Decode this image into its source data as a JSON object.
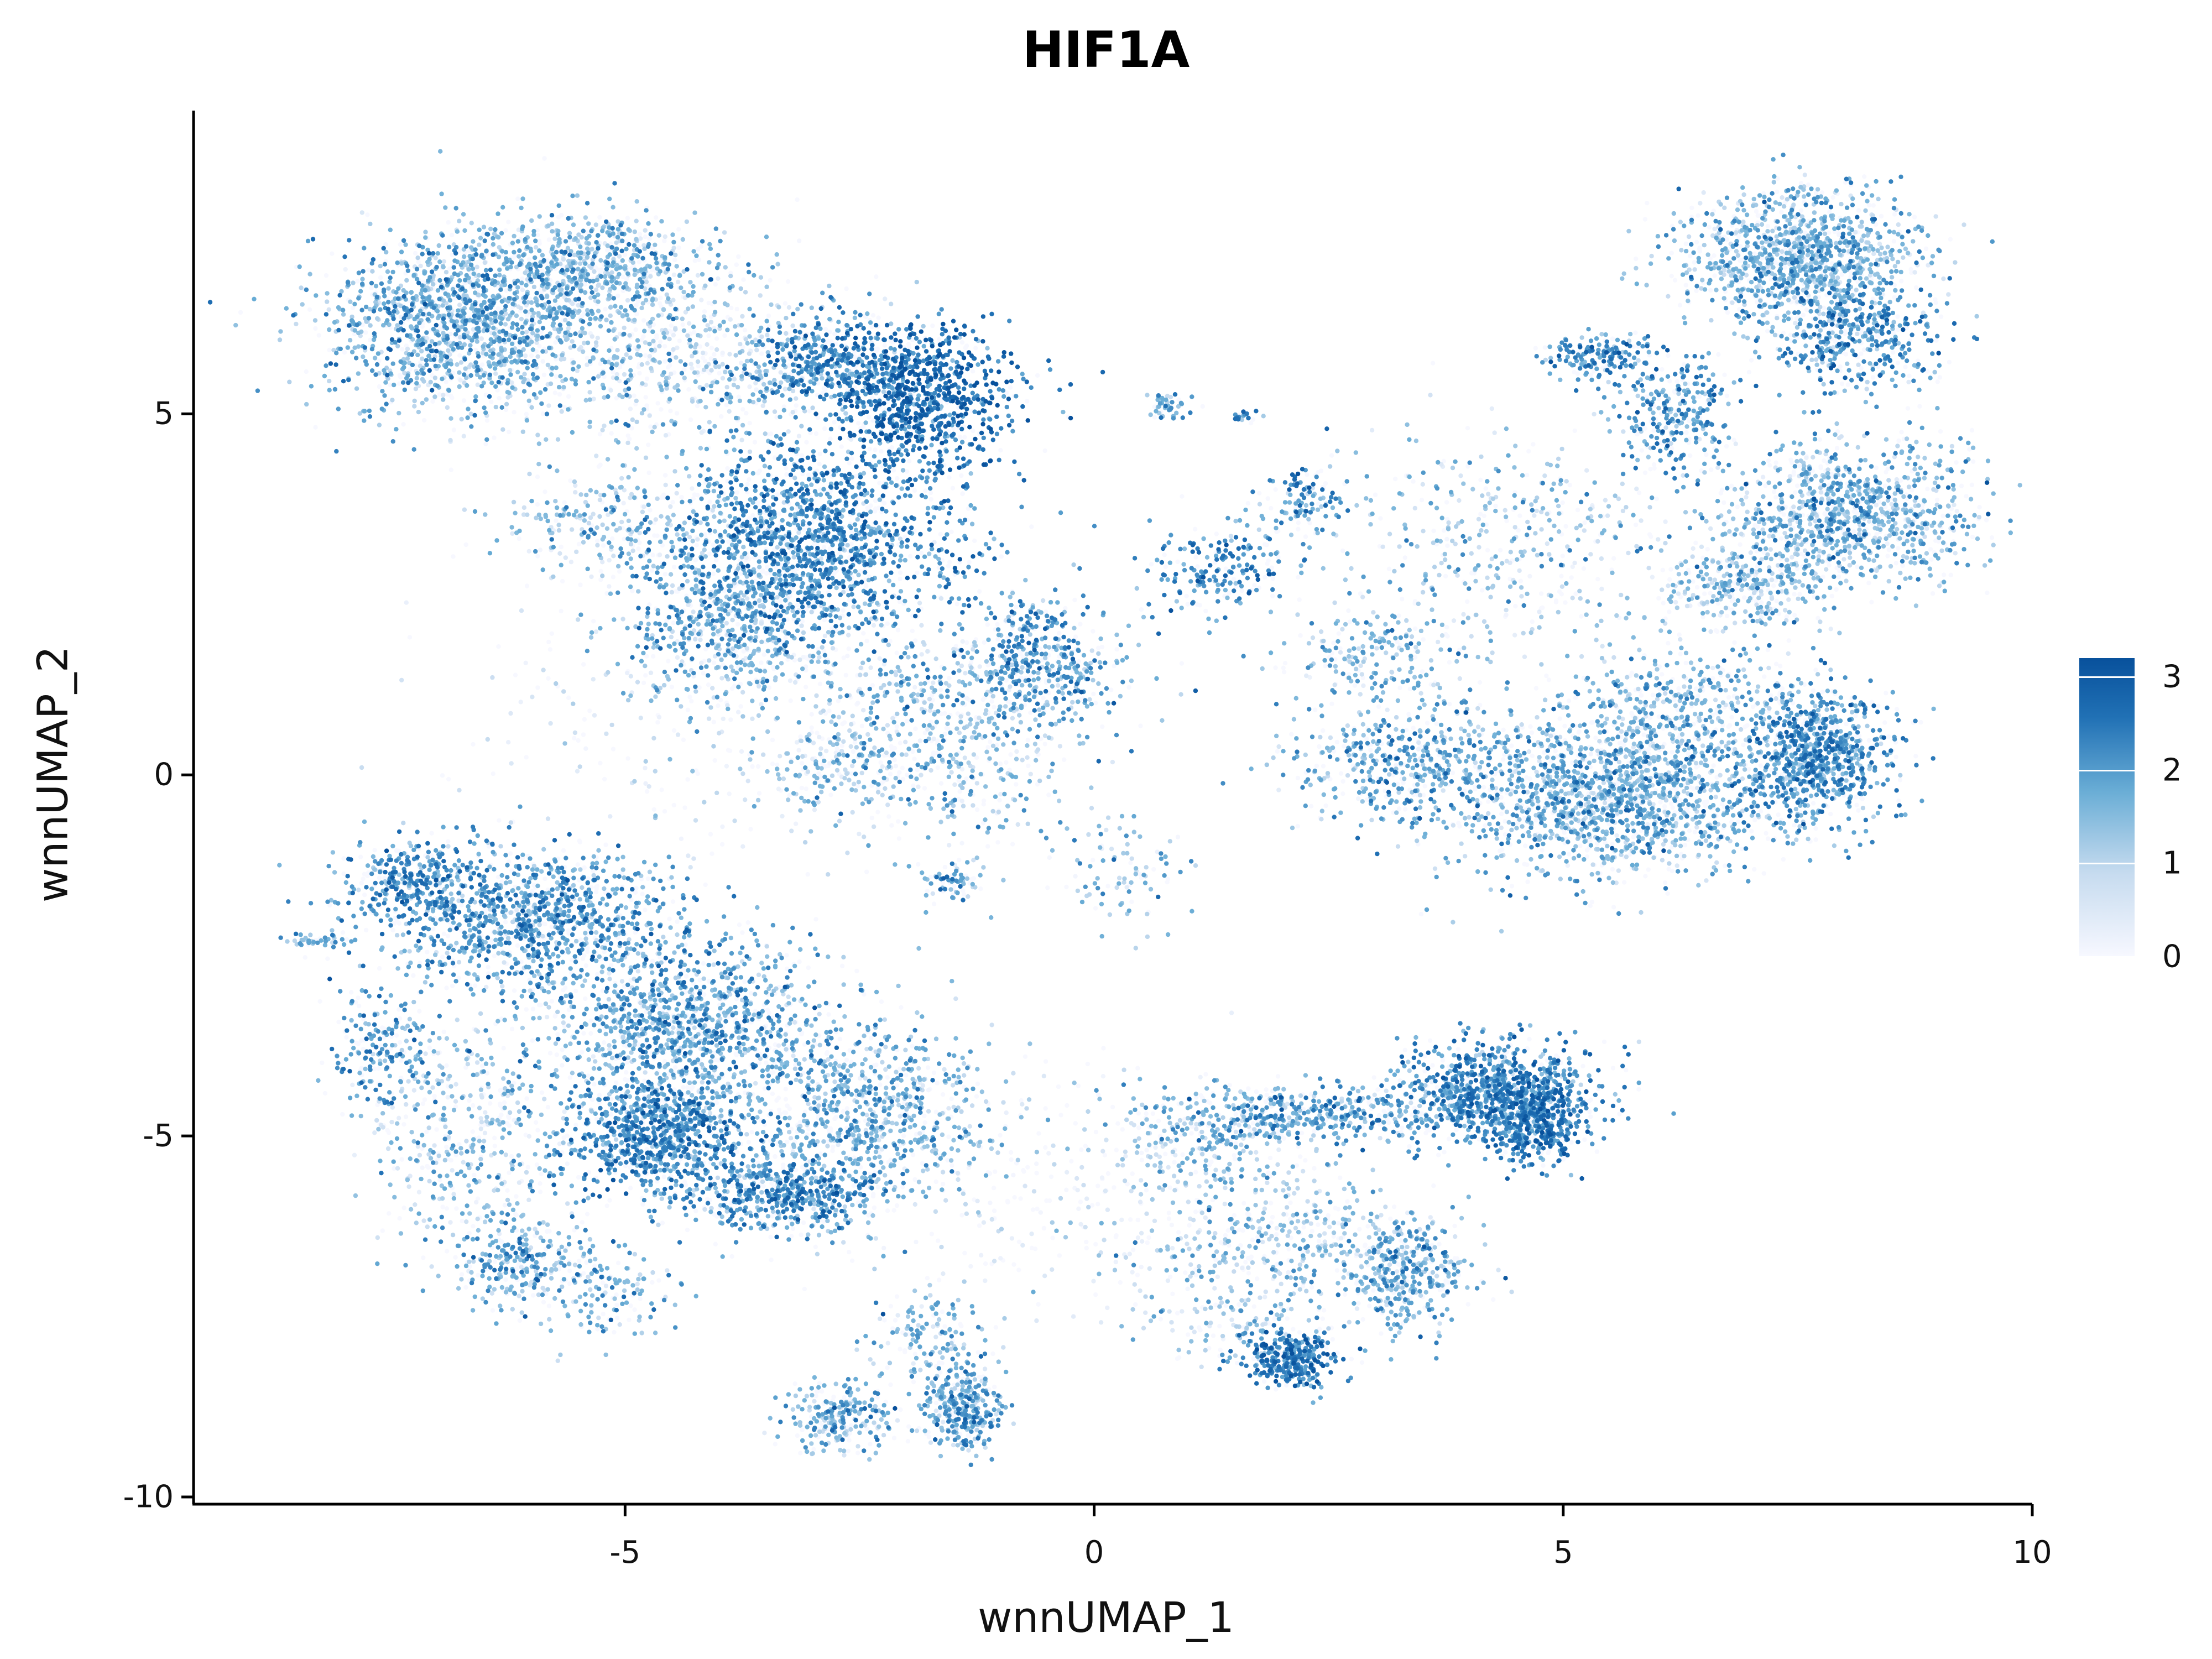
{
  "chart_data": {
    "type": "scatter",
    "title": "HIF1A",
    "xlabel": "wnnUMAP_1",
    "ylabel": "wnnUMAP_2",
    "xlim": [
      -9.6,
      10
    ],
    "ylim": [
      -10.1,
      9.2
    ],
    "x_ticks": [
      -5,
      0,
      5,
      10
    ],
    "x_tick_labels": [
      "-5",
      "0",
      "5",
      "10"
    ],
    "y_ticks": [
      -10,
      -5,
      0,
      5
    ],
    "y_tick_labels": [
      "-10",
      "-5",
      "0",
      "5"
    ],
    "grid": false,
    "legend_position": "right",
    "color_scale": {
      "min": 0,
      "max": 3.2,
      "ticks": [
        0,
        1,
        2,
        3
      ],
      "tick_labels": [
        "0",
        "1",
        "2",
        "3"
      ],
      "colors": [
        "#f7f8ff",
        "#c6dbef",
        "#6baed6",
        "#2171b5",
        "#08519c"
      ]
    },
    "clusters": [
      {
        "cx": -6.8,
        "cy": 6.3,
        "sx": 0.7,
        "sy": 0.6,
        "n": 1500,
        "expr": 1.5
      },
      {
        "cx": -5.3,
        "cy": 7.0,
        "sx": 0.6,
        "sy": 0.4,
        "n": 700,
        "expr": 1.4
      },
      {
        "cx": -4.5,
        "cy": 5.8,
        "sx": 0.9,
        "sy": 0.6,
        "n": 700,
        "expr": 1.0
      },
      {
        "cx": -1.8,
        "cy": 5.2,
        "sx": 0.5,
        "sy": 0.5,
        "n": 900,
        "expr": 2.5
      },
      {
        "cx": -2.7,
        "cy": 5.7,
        "sx": 0.5,
        "sy": 0.3,
        "n": 500,
        "expr": 2.0
      },
      {
        "cx": -3.0,
        "cy": 3.3,
        "sx": 0.8,
        "sy": 0.7,
        "n": 1600,
        "expr": 2.0
      },
      {
        "cx": -3.8,
        "cy": 2.2,
        "sx": 0.6,
        "sy": 0.6,
        "n": 700,
        "expr": 1.5
      },
      {
        "cx": -5.2,
        "cy": 3.5,
        "sx": 0.6,
        "sy": 0.4,
        "n": 250,
        "expr": 1.2
      },
      {
        "cx": -0.6,
        "cy": 1.6,
        "sx": 0.4,
        "sy": 0.4,
        "n": 450,
        "expr": 1.8
      },
      {
        "cx": -1.6,
        "cy": 0.6,
        "sx": 0.7,
        "sy": 0.8,
        "n": 600,
        "expr": 1.3
      },
      {
        "cx": -2.8,
        "cy": 0.1,
        "sx": 0.4,
        "sy": 0.3,
        "n": 150,
        "expr": 1.3
      },
      {
        "cx": -1.5,
        "cy": -1.5,
        "sx": 0.15,
        "sy": 0.15,
        "n": 70,
        "expr": 1.8
      },
      {
        "cx": 0.4,
        "cy": -1.4,
        "sx": 0.35,
        "sy": 0.4,
        "n": 90,
        "expr": 1.2
      },
      {
        "cx": 0.8,
        "cy": 5.1,
        "sx": 0.12,
        "sy": 0.1,
        "n": 45,
        "expr": 1.5
      },
      {
        "cx": 1.6,
        "cy": 4.95,
        "sx": 0.1,
        "sy": 0.05,
        "n": 20,
        "expr": 2.0
      },
      {
        "cx": 1.3,
        "cy": 2.8,
        "sx": 0.4,
        "sy": 0.3,
        "n": 200,
        "expr": 2.0
      },
      {
        "cx": 2.2,
        "cy": 3.8,
        "sx": 0.25,
        "sy": 0.3,
        "n": 130,
        "expr": 1.8
      },
      {
        "cx": 7.5,
        "cy": 7.2,
        "sx": 0.6,
        "sy": 0.45,
        "n": 1200,
        "expr": 1.4
      },
      {
        "cx": 8.1,
        "cy": 6.1,
        "sx": 0.45,
        "sy": 0.35,
        "n": 500,
        "expr": 1.9
      },
      {
        "cx": 5.4,
        "cy": 5.8,
        "sx": 0.3,
        "sy": 0.15,
        "n": 180,
        "expr": 2.0
      },
      {
        "cx": 6.2,
        "cy": 5.0,
        "sx": 0.35,
        "sy": 0.4,
        "n": 300,
        "expr": 1.8
      },
      {
        "cx": 8.1,
        "cy": 3.6,
        "sx": 0.7,
        "sy": 0.5,
        "n": 1100,
        "expr": 1.4
      },
      {
        "cx": 6.9,
        "cy": 2.6,
        "sx": 0.45,
        "sy": 0.3,
        "n": 350,
        "expr": 1.2
      },
      {
        "cx": 4.5,
        "cy": 3.2,
        "sx": 0.9,
        "sy": 0.8,
        "n": 450,
        "expr": 1.2
      },
      {
        "cx": 5.5,
        "cy": -0.3,
        "sx": 0.9,
        "sy": 0.55,
        "n": 1700,
        "expr": 1.5
      },
      {
        "cx": 6.2,
        "cy": 1.0,
        "sx": 0.6,
        "sy": 0.4,
        "n": 400,
        "expr": 1.4
      },
      {
        "cx": 7.7,
        "cy": 0.3,
        "sx": 0.4,
        "sy": 0.45,
        "n": 900,
        "expr": 1.9
      },
      {
        "cx": 3.2,
        "cy": 0.2,
        "sx": 0.6,
        "sy": 0.4,
        "n": 450,
        "expr": 1.6
      },
      {
        "cx": 3.0,
        "cy": 1.6,
        "sx": 0.5,
        "sy": 0.3,
        "n": 200,
        "expr": 1.3
      },
      {
        "cx": -7.3,
        "cy": -1.5,
        "sx": 0.35,
        "sy": 0.3,
        "n": 300,
        "expr": 1.9
      },
      {
        "cx": -6.0,
        "cy": -2.0,
        "sx": 0.8,
        "sy": 0.5,
        "n": 1200,
        "expr": 1.8
      },
      {
        "cx": -7.6,
        "cy": -3.8,
        "sx": 0.25,
        "sy": 0.4,
        "n": 200,
        "expr": 1.8
      },
      {
        "cx": -4.3,
        "cy": -3.5,
        "sx": 0.8,
        "sy": 0.6,
        "n": 1300,
        "expr": 1.6
      },
      {
        "cx": -4.7,
        "cy": -5.0,
        "sx": 0.45,
        "sy": 0.4,
        "n": 900,
        "expr": 2.0
      },
      {
        "cx": -3.3,
        "cy": -5.8,
        "sx": 0.5,
        "sy": 0.3,
        "n": 600,
        "expr": 1.9
      },
      {
        "cx": -2.5,
        "cy": -4.6,
        "sx": 0.7,
        "sy": 0.6,
        "n": 800,
        "expr": 1.5
      },
      {
        "cx": -6.6,
        "cy": -5.0,
        "sx": 0.6,
        "sy": 0.8,
        "n": 500,
        "expr": 1.2
      },
      {
        "cx": -6.1,
        "cy": -6.8,
        "sx": 0.35,
        "sy": 0.3,
        "n": 250,
        "expr": 1.6
      },
      {
        "cx": -5.2,
        "cy": -7.2,
        "sx": 0.4,
        "sy": 0.35,
        "n": 150,
        "expr": 1.4
      },
      {
        "cx": -8.3,
        "cy": -2.3,
        "sx": 0.2,
        "sy": 0.05,
        "n": 40,
        "expr": 1.5
      },
      {
        "cx": -1.4,
        "cy": -8.8,
        "sx": 0.2,
        "sy": 0.3,
        "n": 350,
        "expr": 1.6
      },
      {
        "cx": -2.7,
        "cy": -8.9,
        "sx": 0.3,
        "sy": 0.25,
        "n": 250,
        "expr": 1.5
      },
      {
        "cx": -1.8,
        "cy": -7.8,
        "sx": 0.3,
        "sy": 0.4,
        "n": 150,
        "expr": 1.3
      },
      {
        "cx": 4.3,
        "cy": -4.4,
        "sx": 0.5,
        "sy": 0.35,
        "n": 1000,
        "expr": 2.0
      },
      {
        "cx": 4.7,
        "cy": -4.8,
        "sx": 0.25,
        "sy": 0.3,
        "n": 400,
        "expr": 2.3
      },
      {
        "cx": 2.3,
        "cy": -4.7,
        "sx": 0.8,
        "sy": 0.2,
        "n": 500,
        "expr": 1.7
      },
      {
        "cx": 1.2,
        "cy": -5.1,
        "sx": 0.5,
        "sy": 0.3,
        "n": 200,
        "expr": 1.3
      },
      {
        "cx": 3.3,
        "cy": -6.9,
        "sx": 0.35,
        "sy": 0.35,
        "n": 400,
        "expr": 1.5
      },
      {
        "cx": 2.0,
        "cy": -6.4,
        "sx": 0.9,
        "sy": 0.45,
        "n": 400,
        "expr": 1.2
      },
      {
        "cx": 2.1,
        "cy": -8.1,
        "sx": 0.3,
        "sy": 0.2,
        "n": 350,
        "expr": 2.2
      },
      {
        "cx": 1.6,
        "cy": -7.6,
        "sx": 0.5,
        "sy": 0.3,
        "n": 150,
        "expr": 1.2
      },
      {
        "cx": 0.0,
        "cy": -5.8,
        "sx": 1.3,
        "sy": 0.8,
        "n": 300,
        "expr": 0.4
      },
      {
        "cx": -3.5,
        "cy": 1.2,
        "sx": 1.5,
        "sy": 1.0,
        "n": 400,
        "expr": 0.4
      }
    ]
  }
}
